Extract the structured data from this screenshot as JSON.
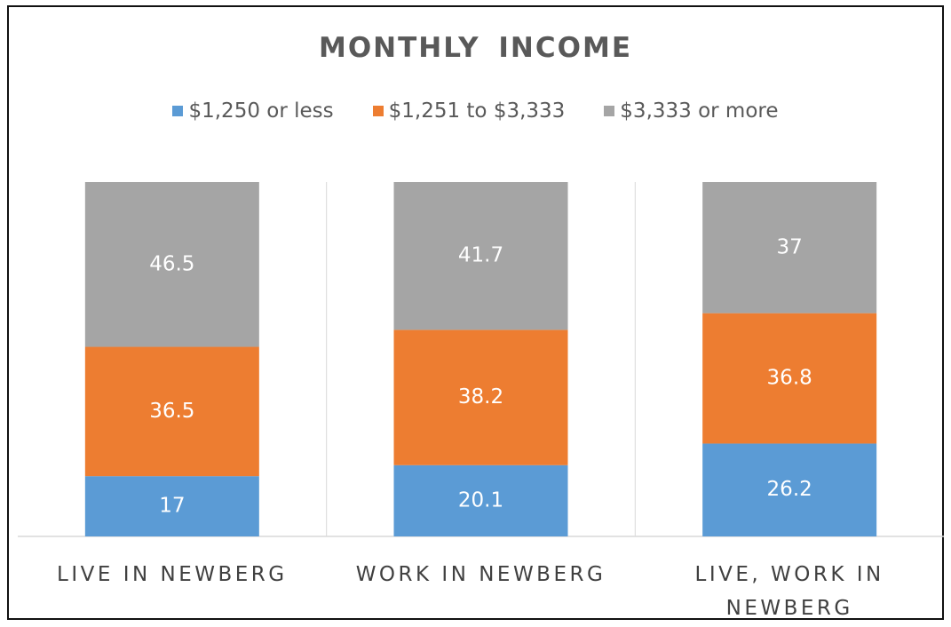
{
  "chart_data": {
    "type": "stacked_bar",
    "title": "MONTHLY  INCOME",
    "categories": [
      "LIVE IN NEWBERG",
      "WORK IN NEWBERG",
      "LIVE, WORK IN NEWBERG"
    ],
    "series": [
      {
        "name": "$1,250 or less",
        "color": "#5b9bd5",
        "values": [
          17,
          20.1,
          26.2
        ]
      },
      {
        "name": "$1,251 to $3,333",
        "color": "#ed7d31",
        "values": [
          36.5,
          38.2,
          36.8
        ]
      },
      {
        "name": "$3,333 or more",
        "color": "#a5a5a5",
        "values": [
          46.5,
          41.7,
          37
        ]
      }
    ],
    "legend": "top"
  }
}
